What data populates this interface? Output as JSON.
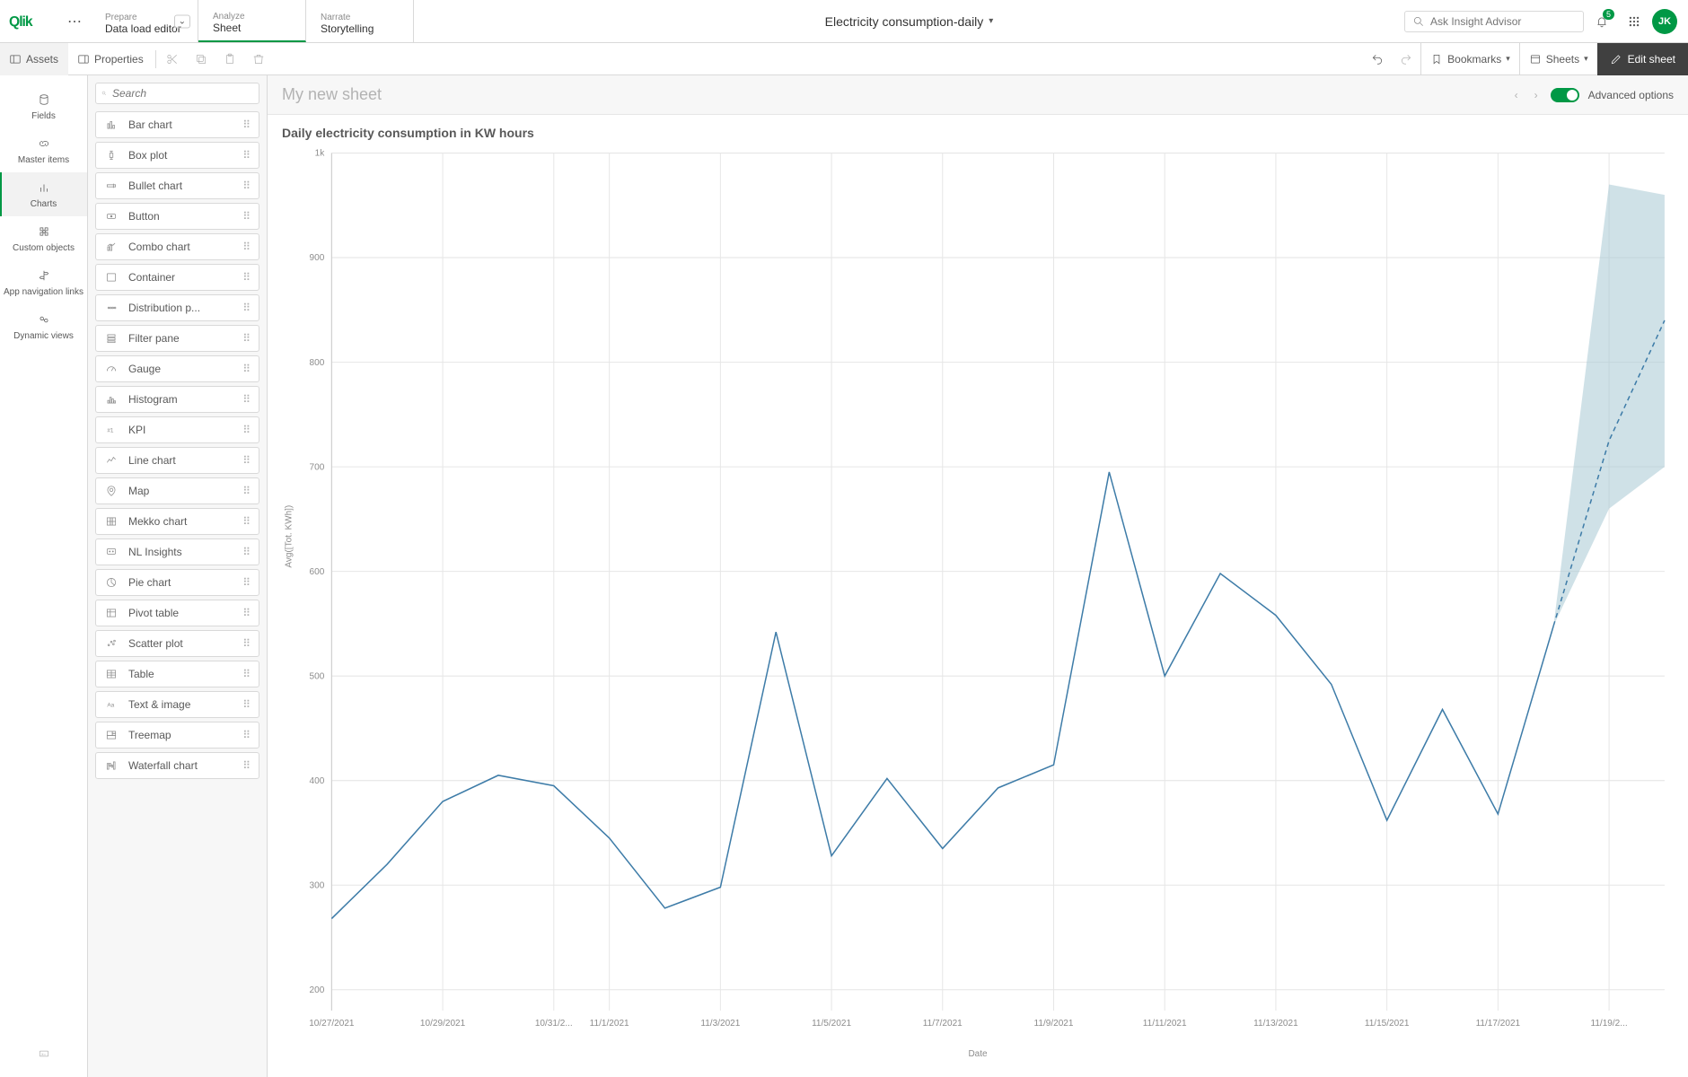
{
  "header": {
    "logo_text": "Qlik",
    "nav": [
      {
        "sub": "Prepare",
        "main": "Data load editor",
        "active": false,
        "has_dropdown": true
      },
      {
        "sub": "Analyze",
        "main": "Sheet",
        "active": true,
        "has_dropdown": false
      },
      {
        "sub": "Narrate",
        "main": "Storytelling",
        "active": false,
        "has_dropdown": false
      }
    ],
    "app_title": "Electricity consumption-daily",
    "search_placeholder": "Ask Insight Advisor",
    "notification_count": "5",
    "avatar_initials": "JK"
  },
  "toolbar": {
    "assets_label": "Assets",
    "properties_label": "Properties",
    "bookmarks_label": "Bookmarks",
    "sheets_label": "Sheets",
    "edit_sheet_label": "Edit sheet"
  },
  "left_rail": [
    {
      "label": "Fields",
      "icon": "db"
    },
    {
      "label": "Master items",
      "icon": "link"
    },
    {
      "label": "Charts",
      "icon": "chart",
      "active": true
    },
    {
      "label": "Custom objects",
      "icon": "puzzle"
    },
    {
      "label": "App navigation links",
      "icon": "signpost"
    },
    {
      "label": "Dynamic views",
      "icon": "dyn"
    }
  ],
  "asset_panel": {
    "search_placeholder": "Search",
    "chart_types": [
      {
        "label": "Bar chart",
        "icon": "bar"
      },
      {
        "label": "Box plot",
        "icon": "box"
      },
      {
        "label": "Bullet chart",
        "icon": "bullet"
      },
      {
        "label": "Button",
        "icon": "button"
      },
      {
        "label": "Combo chart",
        "icon": "combo"
      },
      {
        "label": "Container",
        "icon": "container"
      },
      {
        "label": "Distribution p...",
        "icon": "dist"
      },
      {
        "label": "Filter pane",
        "icon": "filter"
      },
      {
        "label": "Gauge",
        "icon": "gauge"
      },
      {
        "label": "Histogram",
        "icon": "hist"
      },
      {
        "label": "KPI",
        "icon": "kpi"
      },
      {
        "label": "Line chart",
        "icon": "line"
      },
      {
        "label": "Map",
        "icon": "map"
      },
      {
        "label": "Mekko chart",
        "icon": "mekko"
      },
      {
        "label": "NL Insights",
        "icon": "nl"
      },
      {
        "label": "Pie chart",
        "icon": "pie"
      },
      {
        "label": "Pivot table",
        "icon": "pivot"
      },
      {
        "label": "Scatter plot",
        "icon": "scatter"
      },
      {
        "label": "Table",
        "icon": "table"
      },
      {
        "label": "Text & image",
        "icon": "text"
      },
      {
        "label": "Treemap",
        "icon": "tree"
      },
      {
        "label": "Waterfall chart",
        "icon": "waterfall"
      }
    ]
  },
  "sheet": {
    "title": "My new sheet",
    "advanced_label": "Advanced options",
    "advanced_on": true
  },
  "chart": {
    "type": "line",
    "title": "Daily electricity consumption in KW hours",
    "xlabel": "Date",
    "ylabel": "Avg([Tot. KWh])",
    "ylim": [
      180,
      1000
    ],
    "yticks": [
      200,
      300,
      400,
      500,
      600,
      700,
      800,
      900,
      1000
    ],
    "ytick_labels": [
      "200",
      "300",
      "400",
      "500",
      "600",
      "700",
      "800",
      "900",
      "1k"
    ],
    "xticks_visible": [
      "10/27/2021",
      "10/29/2021",
      "10/31/2...",
      "11/1/2021",
      "11/3/2021",
      "11/5/2021",
      "11/7/2021",
      "11/9/2021",
      "11/11/2021",
      "11/13/2021",
      "11/15/2021",
      "11/17/2021",
      "11/19/2..."
    ],
    "xtick_positions": [
      0,
      2,
      4,
      5,
      7,
      9,
      11,
      13,
      15,
      17,
      19,
      21,
      23
    ],
    "x_count": 25,
    "data": [
      {
        "i": 0,
        "v": 268
      },
      {
        "i": 1,
        "v": 320
      },
      {
        "i": 2,
        "v": 380
      },
      {
        "i": 3,
        "v": 405
      },
      {
        "i": 4,
        "v": 395
      },
      {
        "i": 5,
        "v": 345
      },
      {
        "i": 6,
        "v": 278
      },
      {
        "i": 7,
        "v": 298
      },
      {
        "i": 8,
        "v": 542
      },
      {
        "i": 9,
        "v": 328
      },
      {
        "i": 10,
        "v": 402
      },
      {
        "i": 11,
        "v": 335
      },
      {
        "i": 12,
        "v": 393
      },
      {
        "i": 13,
        "v": 415
      },
      {
        "i": 14,
        "v": 695
      },
      {
        "i": 15,
        "v": 500
      },
      {
        "i": 16,
        "v": 598
      },
      {
        "i": 17,
        "v": 558
      },
      {
        "i": 18,
        "v": 492
      },
      {
        "i": 19,
        "v": 362
      },
      {
        "i": 20,
        "v": 468
      },
      {
        "i": 21,
        "v": 368
      },
      {
        "i": 22,
        "v": 548
      }
    ],
    "forecast": [
      {
        "i": 22,
        "v": 548,
        "lo": 548,
        "hi": 548
      },
      {
        "i": 23,
        "v": 725,
        "lo": 660,
        "hi": 970
      },
      {
        "i": 24,
        "v": 840,
        "lo": 700,
        "hi": 960
      }
    ],
    "line_color": "#3e7ca8",
    "forecast_line_color": "#3e7ca8",
    "forecast_fill": "#a7c9d3",
    "forecast_fill_opacity": 0.55,
    "grid_color": "#e6e6e6",
    "axis_color": "#cccccc",
    "background_color": "#ffffff",
    "tick_fontsize": 10,
    "tick_color": "#8c8c8c"
  }
}
